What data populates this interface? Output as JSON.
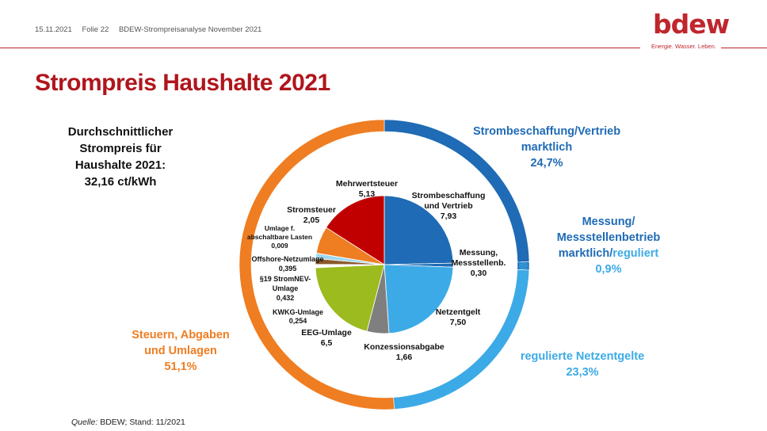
{
  "header": {
    "date": "15.11.2021",
    "slide": "Folie  22",
    "deck": "BDEW-Strompreisanalyse November 2021"
  },
  "logo": {
    "text": "bdew",
    "tagline": "Energie. Wasser. Leben."
  },
  "title": "Strompreis Haushalte 2021",
  "average": {
    "line1": "Durchschnittlicher",
    "line2": "Strompreis für",
    "line3": "Haushalte 2021:",
    "line4": "32,16 ct/kWh"
  },
  "outer_labels": {
    "procurement": {
      "line1": "Strombeschaffung/Vertrieb",
      "line2": "marktlich",
      "pct": "24,7%"
    },
    "metering": {
      "line1": "Messung/",
      "line2": "Messstellenbetrieb",
      "line3a": "marktlich/",
      "line3b": "reguliert",
      "pct": "0,9%"
    },
    "grid": {
      "line1": "regulierte Netzentgelte",
      "pct": "23,3%"
    },
    "taxes": {
      "line1": "Steuern, Abgaben",
      "line2": "und Umlagen",
      "pct": "51,1%"
    }
  },
  "source": {
    "label": "Quelle:",
    "text": " BDEW; Stand: 11/2021"
  },
  "colors": {
    "dark_blue": "#1f6bb5",
    "light_blue": "#3caae6",
    "orange": "#ef7d22",
    "red": "#c00000",
    "green": "#9bbb1e",
    "gray": "#7f7f7f",
    "title_red": "#b0151c"
  },
  "chart_data": {
    "type": "pie",
    "unit": "ct/kWh",
    "total": 32.16,
    "slices": [
      {
        "name": "Strombeschaffung und Vertrieb",
        "value": 7.93,
        "label": "7,93",
        "color": "#1f6bb5"
      },
      {
        "name": "Messung, Messstellenb.",
        "value": 0.3,
        "label": "0,30",
        "color": "#1f6bb5"
      },
      {
        "name": "Netzentgelt",
        "value": 7.5,
        "label": "7,50",
        "color": "#3caae6"
      },
      {
        "name": "Konzessionsabgabe",
        "value": 1.66,
        "label": "1,66",
        "color": "#7f7f7f"
      },
      {
        "name": "EEG-Umlage",
        "value": 6.5,
        "label": "6,5",
        "color": "#9bbb1e"
      },
      {
        "name": "KWKG-Umlage",
        "value": 0.254,
        "label": "0,254",
        "color": "#ffffff"
      },
      {
        "name": "§19 StromNEV-Umlage",
        "value": 0.432,
        "label": "0,432",
        "color": "#8b5a2b"
      },
      {
        "name": "Offshore-Netzumlage",
        "value": 0.395,
        "label": "0,395",
        "color": "#9fd8ee"
      },
      {
        "name": "Umlage f. abschaltbare Lasten",
        "value": 0.009,
        "label": "0,009",
        "color": "#b0b0b0"
      },
      {
        "name": "Stromsteuer",
        "value": 2.05,
        "label": "2,05",
        "color": "#ef7d22"
      },
      {
        "name": "Mehrwertsteuer",
        "value": 5.13,
        "label": "5,13",
        "color": "#c00000"
      }
    ],
    "outer_ring": [
      {
        "name": "Strombeschaffung/Vertrieb marktlich",
        "value": 24.7,
        "label": "24,7%",
        "color": "#1f6bb5"
      },
      {
        "name": "Messung/Messstellenbetrieb marktlich/reguliert",
        "value": 0.9,
        "label": "0,9%",
        "color": "#1f6bb5"
      },
      {
        "name": "regulierte Netzentgelte",
        "value": 23.3,
        "label": "23,3%",
        "color": "#3caae6"
      },
      {
        "name": "Steuern, Abgaben und Umlagen",
        "value": 51.1,
        "label": "51,1%",
        "color": "#ef7d22"
      }
    ],
    "slice_labels": [
      {
        "lines": [
          "Strombeschaffung",
          "und Vertrieb",
          "7,93"
        ]
      },
      {
        "lines": [
          "Messung,",
          "Messstellenb.",
          "0,30"
        ]
      },
      {
        "lines": [
          "Netzentgelt",
          "7,50"
        ]
      },
      {
        "lines": [
          "Konzessionsabgabe",
          "1,66"
        ]
      },
      {
        "lines": [
          "EEG-Umlage",
          "6,5"
        ]
      },
      {
        "lines": [
          "KWKG-Umlage",
          "0,254"
        ]
      },
      {
        "lines": [
          "§19 StromNEV-",
          "Umlage",
          "0,432"
        ]
      },
      {
        "lines": [
          "Offshore-Netzumlage",
          "0,395"
        ]
      },
      {
        "lines": [
          "Umlage f.",
          "abschaltbare Lasten",
          "0,009"
        ]
      },
      {
        "lines": [
          "Stromsteuer",
          "2,05"
        ]
      },
      {
        "lines": [
          "Mehrwertsteuer",
          "5,13"
        ]
      }
    ]
  }
}
